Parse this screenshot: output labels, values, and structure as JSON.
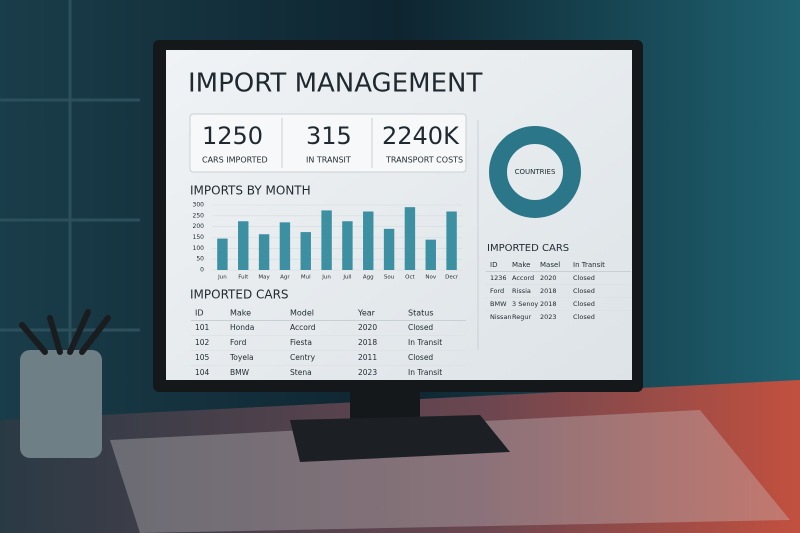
{
  "header": {
    "title": "IMPORT MANAGEMENT"
  },
  "kpis": [
    {
      "value": 1250,
      "label": "CARS IMPORTED"
    },
    {
      "value": 315,
      "label": "IN TRANSIT"
    },
    {
      "value": "2240K",
      "label": "TRANSPORT COSTS"
    }
  ],
  "chart_data": {
    "type": "bar",
    "title": "IMPORTS BY MONTH",
    "categories": [
      "Jun",
      "Fult",
      "May",
      "Agr",
      "Mul",
      "Jun",
      "Jull",
      "Agg",
      "Sou",
      "Oct",
      "Nov",
      "Decr"
    ],
    "values": [
      145,
      225,
      165,
      220,
      175,
      275,
      225,
      270,
      190,
      290,
      140,
      270
    ],
    "color": "#3d8fa2",
    "ylim": [
      0,
      300
    ],
    "yticks": [
      0,
      50,
      100,
      150,
      200,
      250,
      300
    ],
    "grid": true
  },
  "donut": {
    "label": "COUNTRIES"
  },
  "table": {
    "title": "IMPORTED CARS",
    "columns": [
      "ID",
      "Make",
      "Model",
      "Year",
      "Status"
    ],
    "rows": [
      [
        "101",
        "Honda",
        "Accord",
        "2020",
        "Closed"
      ],
      [
        "102",
        "Ford",
        "Fiesta",
        "2018",
        "In Transit"
      ],
      [
        "105",
        "Toyela",
        "Centry",
        "2011",
        "Closed"
      ],
      [
        "104",
        "BMW",
        "Stena",
        "2023",
        "In Transit"
      ]
    ]
  },
  "side_table": {
    "title": "IMPORTED CARS",
    "columns": [
      "ID",
      "Make",
      "Masel",
      "In Transit"
    ],
    "rows": [
      [
        "1236",
        "Accord",
        "2020",
        "Closed"
      ],
      [
        "Ford",
        "Rissia",
        "2018",
        "Closed"
      ],
      [
        "BMW",
        "3 Senoy",
        "2018",
        "Closed"
      ],
      [
        "Nissan",
        "Regur",
        "2023",
        "Closed"
      ]
    ]
  }
}
